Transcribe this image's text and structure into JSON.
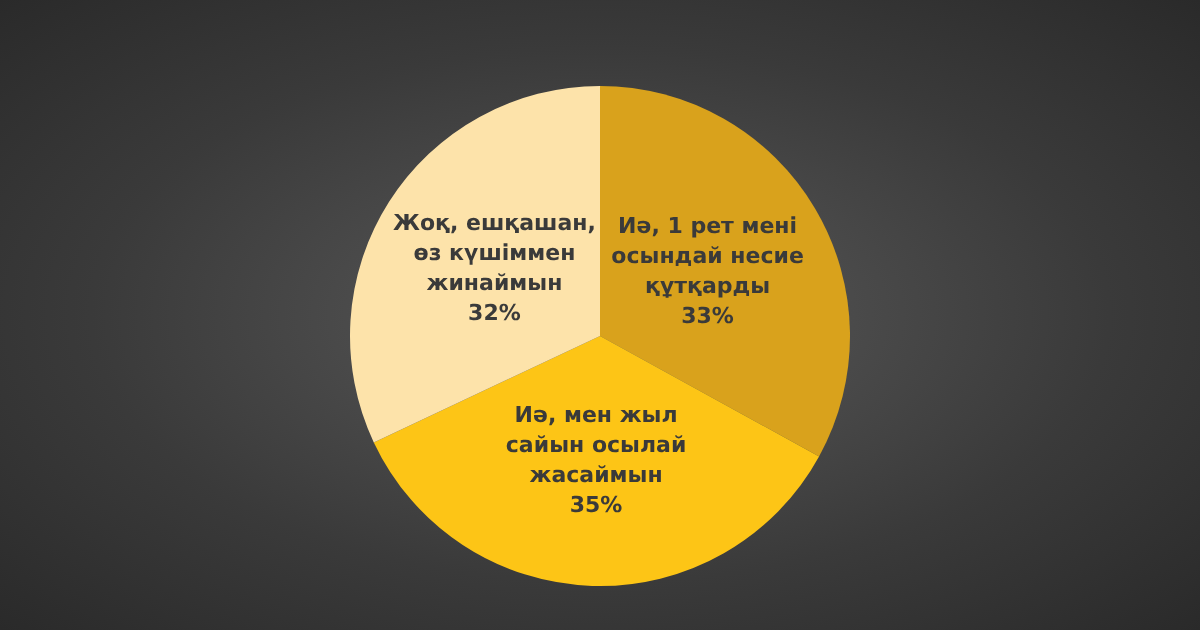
{
  "chart_data": {
    "type": "pie",
    "categories": [
      "Иә, 1 рет мені осындай несие құтқарды",
      "Иә, мен жыл сайын осылай жасаймын",
      "Жоқ, ешқашан, өз күшіммен жинаймын"
    ],
    "values": [
      33,
      35,
      32
    ],
    "value_labels": [
      "33%",
      "35%",
      "32%"
    ],
    "colors": [
      "#d9a21c",
      "#fdc516",
      "#fde3aa"
    ],
    "legend": false
  }
}
